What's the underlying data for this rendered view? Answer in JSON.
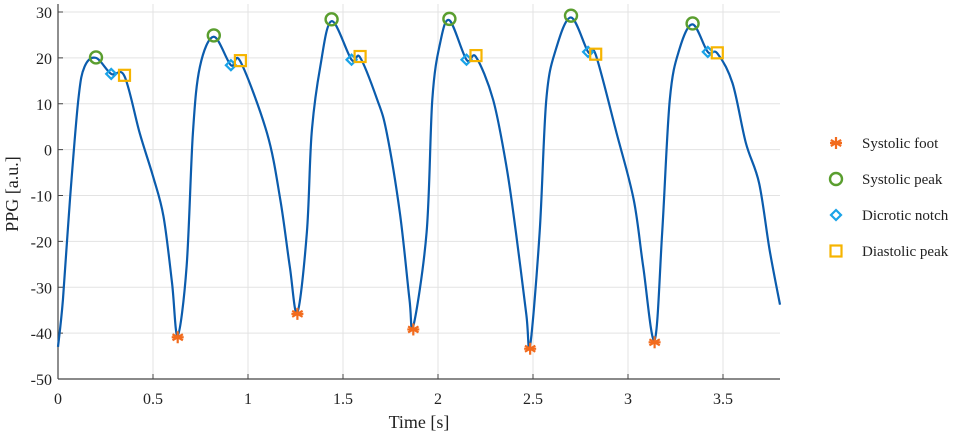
{
  "chart_data": {
    "type": "line",
    "title": "",
    "xlabel": "Time [s]",
    "ylabel": "PPG [a.u.]",
    "xlim": [
      0,
      3.8
    ],
    "ylim": [
      -50,
      30
    ],
    "xticks": [
      "0",
      "0.5",
      "1",
      "1.5",
      "2",
      "2.5",
      "3",
      "3.5"
    ],
    "yticks": [
      "30",
      "20",
      "10",
      "0",
      "-10",
      "-20",
      "-30",
      "-40",
      "-50"
    ],
    "grid": true,
    "legend_placement": "right",
    "signal": {
      "color": "#0b5cad",
      "x": [
        0,
        0.026,
        0.063,
        0.107,
        0.14,
        0.2,
        0.28,
        0.35,
        0.43,
        0.5,
        0.555,
        0.6,
        0.63,
        0.677,
        0.71,
        0.747,
        0.82,
        0.91,
        0.96,
        1.1,
        1.17,
        1.22,
        1.26,
        1.31,
        1.335,
        1.38,
        1.44,
        1.545,
        1.59,
        1.68,
        1.73,
        1.8,
        1.85,
        1.87,
        1.94,
        1.97,
        2.01,
        2.06,
        2.15,
        2.2,
        2.29,
        2.36,
        2.41,
        2.465,
        2.485,
        2.535,
        2.57,
        2.62,
        2.7,
        2.79,
        2.83,
        2.94,
        3.03,
        3.08,
        3.14,
        3.18,
        3.22,
        3.27,
        3.34,
        3.42,
        3.47,
        3.55,
        3.62,
        3.69,
        3.745,
        3.8
      ],
      "y": [
        -43,
        -32.7,
        -10.9,
        10.9,
        18.1,
        20,
        16.5,
        16.0,
        3.6,
        -5.8,
        -14.5,
        -29,
        -40.5,
        -25.4,
        3.6,
        18.1,
        24.6,
        18.4,
        19.2,
        3.6,
        -10.9,
        -25.5,
        -35.5,
        -18,
        3.6,
        18,
        28,
        19.6,
        20.1,
        10.9,
        3.7,
        -14,
        -32.7,
        -38.5,
        -18,
        10.9,
        23,
        28.2,
        19.6,
        20.2,
        10.9,
        -3.6,
        -18,
        -36,
        -42.7,
        -18,
        10.9,
        21.8,
        28.8,
        21.3,
        20.7,
        3.6,
        -10.9,
        -25.5,
        -41.5,
        -18,
        10.9,
        21.8,
        27.3,
        21.3,
        21.0,
        14.5,
        1.5,
        -7.3,
        -21.8,
        -33.8
      ]
    },
    "series": [
      {
        "name": "Systolic foot",
        "marker": "asterisk",
        "color": "#f26b1d",
        "x": [
          0.63,
          1.26,
          1.87,
          2.485,
          3.14
        ],
        "y": [
          -40.9,
          -35.8,
          -39.2,
          -43.4,
          -42.0
        ]
      },
      {
        "name": "Systolic peak",
        "marker": "circle",
        "color": "#5a9e2f",
        "x": [
          0.2,
          0.82,
          1.44,
          2.06,
          2.7,
          3.34
        ],
        "y": [
          20.1,
          24.9,
          28.4,
          28.5,
          29.2,
          27.5
        ]
      },
      {
        "name": "Dicrotic notch",
        "marker": "diamond",
        "color": "#1aa3e8",
        "x": [
          0.28,
          0.91,
          1.545,
          2.15,
          2.79,
          3.42
        ],
        "y": [
          16.5,
          18.4,
          19.6,
          19.6,
          21.3,
          21.3
        ]
      },
      {
        "name": "Diastolic peak",
        "marker": "square",
        "color": "#f6b400",
        "x": [
          0.35,
          0.96,
          1.59,
          2.2,
          2.83,
          3.47
        ],
        "y": [
          16.2,
          19.4,
          20.3,
          20.5,
          20.8,
          21.1
        ]
      }
    ]
  }
}
